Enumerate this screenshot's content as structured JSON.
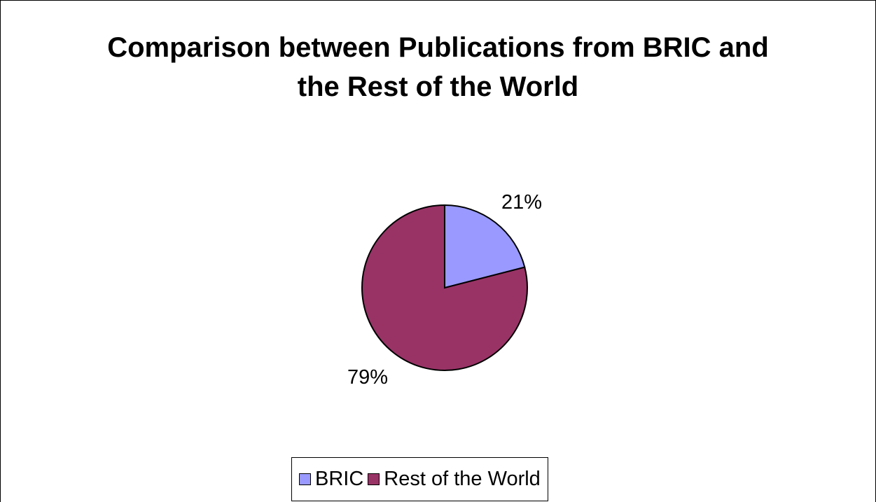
{
  "title_lines": [
    "Comparison between Publications from BRIC and",
    "the Rest of the World"
  ],
  "chart_data": {
    "type": "pie",
    "title": "Comparison between Publications from BRIC and the Rest of the World",
    "labels": [
      "BRIC",
      "Rest of the World"
    ],
    "values": [
      21,
      79
    ],
    "data_labels": [
      "21%",
      "79%"
    ],
    "colors": [
      "#9999ff",
      "#993366"
    ],
    "legend": "bottom"
  },
  "legend": {
    "items": [
      "BRIC",
      "Rest of the World"
    ]
  }
}
